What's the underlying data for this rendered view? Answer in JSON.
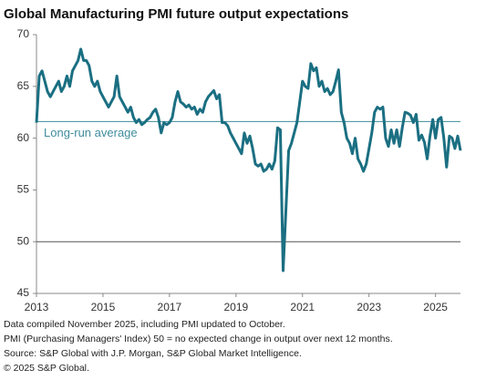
{
  "chart_data": {
    "type": "line",
    "title": "Global Manufacturing PMI future output expectations",
    "footnotes": [
      "Data compiled November 2025, including PMI updated to October.",
      "PMI (Purchasing Managers' Index) 50 = no expected change in output over next 12 months.",
      "Source: S&P Global with J.P. Morgan, S&P Global Market Intelligence.",
      "© 2025 S&P Global."
    ],
    "xlim": [
      2013,
      2025.75
    ],
    "xticks": [
      2013,
      2015,
      2017,
      2019,
      2021,
      2023,
      2025
    ],
    "ylim": [
      45,
      70
    ],
    "yticks": [
      45,
      50,
      55,
      60,
      65,
      70
    ],
    "baseline": 50,
    "reference_lines": [
      {
        "label": "Long-run average",
        "value": 61.6,
        "color": "#3f8c9c"
      }
    ],
    "x": [
      2013,
      2013.083,
      2013.167,
      2013.25,
      2013.333,
      2013.417,
      2013.5,
      2013.583,
      2013.667,
      2013.75,
      2013.833,
      2013.917,
      2014,
      2014.083,
      2014.167,
      2014.25,
      2014.333,
      2014.417,
      2014.5,
      2014.583,
      2014.667,
      2014.75,
      2014.833,
      2014.917,
      2015,
      2015.083,
      2015.167,
      2015.25,
      2015.333,
      2015.417,
      2015.5,
      2015.583,
      2015.667,
      2015.75,
      2015.833,
      2015.917,
      2016,
      2016.083,
      2016.167,
      2016.25,
      2016.333,
      2016.417,
      2016.5,
      2016.583,
      2016.667,
      2016.75,
      2016.833,
      2016.917,
      2017,
      2017.083,
      2017.167,
      2017.25,
      2017.333,
      2017.417,
      2017.5,
      2017.583,
      2017.667,
      2017.75,
      2017.833,
      2017.917,
      2018,
      2018.083,
      2018.167,
      2018.25,
      2018.333,
      2018.417,
      2018.5,
      2018.583,
      2018.667,
      2018.75,
      2018.833,
      2018.917,
      2019,
      2019.083,
      2019.167,
      2019.25,
      2019.333,
      2019.417,
      2019.5,
      2019.583,
      2019.667,
      2019.75,
      2019.833,
      2019.917,
      2020,
      2020.083,
      2020.167,
      2020.25,
      2020.333,
      2020.417,
      2020.5,
      2020.583,
      2020.667,
      2020.75,
      2020.833,
      2020.917,
      2021,
      2021.083,
      2021.167,
      2021.25,
      2021.333,
      2021.417,
      2021.5,
      2021.583,
      2021.667,
      2021.75,
      2021.833,
      2021.917,
      2022,
      2022.083,
      2022.167,
      2022.25,
      2022.333,
      2022.417,
      2022.5,
      2022.583,
      2022.667,
      2022.75,
      2022.833,
      2022.917,
      2023,
      2023.083,
      2023.167,
      2023.25,
      2023.333,
      2023.417,
      2023.5,
      2023.583,
      2023.667,
      2023.75,
      2023.833,
      2023.917,
      2024,
      2024.083,
      2024.167,
      2024.25,
      2024.333,
      2024.417,
      2024.5,
      2024.583,
      2024.667,
      2024.75,
      2024.833,
      2024.917,
      2025,
      2025.083,
      2025.167,
      2025.25,
      2025.333,
      2025.417,
      2025.5,
      2025.583,
      2025.667,
      2025.75
    ],
    "series": [
      {
        "name": "Future output expectations",
        "color": "#1b6f82",
        "values": [
          61.5,
          66,
          66.5,
          65.5,
          64.5,
          64,
          64.5,
          65,
          65.5,
          64.5,
          65,
          66,
          65,
          66.5,
          67,
          67.5,
          68.6,
          67.5,
          67.5,
          67,
          65.5,
          65,
          65.5,
          64.5,
          64,
          63.5,
          63,
          63.5,
          64,
          66,
          64,
          63.5,
          63,
          62.5,
          63,
          62,
          61.5,
          61.8,
          61.3,
          61.5,
          61.8,
          62,
          62.5,
          62.8,
          62,
          60.5,
          61.5,
          61.3,
          61.5,
          62,
          63.5,
          64.5,
          63.5,
          63.3,
          63,
          63.2,
          62.8,
          63,
          62.3,
          62.8,
          62.5,
          63.5,
          64,
          64.3,
          64.6,
          63.8,
          64.2,
          61.5,
          61.5,
          61.2,
          60.5,
          60,
          59.5,
          59,
          58.5,
          60.5,
          59.5,
          60.2,
          59,
          57.5,
          57.3,
          57.5,
          56.8,
          57,
          57.5,
          57,
          57.8,
          61,
          60.8,
          47.2,
          53,
          58.8,
          59.5,
          60.5,
          61.5,
          63.5,
          65.5,
          65,
          64.8,
          67.2,
          66.5,
          66.8,
          65,
          65.5,
          64.5,
          64.8,
          64.2,
          64.5,
          65.5,
          66.6,
          62.5,
          61.5,
          60,
          59.5,
          58.5,
          60,
          58,
          57.5,
          56.8,
          57.5,
          59,
          60.5,
          62.5,
          63,
          62.8,
          63,
          60,
          59.2,
          60.8,
          59.5,
          60.8,
          59.2,
          61,
          62.5,
          62.4,
          62.2,
          61.5,
          62.3,
          59.8,
          60.3,
          59.6,
          58,
          60.2,
          61.8,
          60,
          61.8,
          62,
          60,
          57.2,
          60.2,
          60,
          59,
          60.2,
          58.8
        ]
      }
    ]
  }
}
